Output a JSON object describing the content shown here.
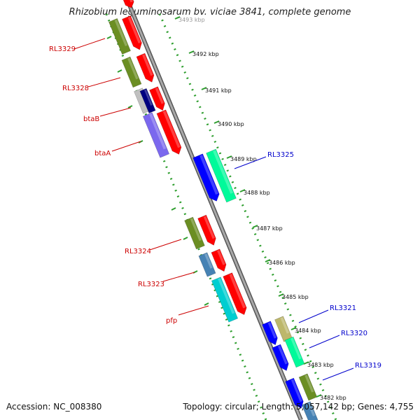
{
  "title": "Rhizobium leguminosarum bv. viciae 3841, complete genome",
  "footer": {
    "accession": "Accession: NC_008380",
    "summary": "Topology: circular; Length: 5,057,142 bp; Genes: 4,755"
  },
  "colors": {
    "backbone": "#8c8c8c",
    "tick_dots": "#2e9e2e",
    "left_label": "#cc0000",
    "right_label": "#0000cc",
    "red_strand": "#ff0000",
    "olive_strand": "#6b8e23"
  },
  "ticks": [
    "3493 kbp",
    "3492 kbp",
    "3491 kbp",
    "3490 kbp",
    "3489 kbp",
    "3488 kbp",
    "3487 kbp",
    "3486 kbp",
    "3485 kbp",
    "3484 kbp",
    "3483 kbp",
    "3482 kbp"
  ],
  "left_genes": [
    "RL3329",
    "RL3328",
    "btaB",
    "btaA",
    "RL3324",
    "RL3323",
    "pfp"
  ],
  "right_genes": [
    "RL3325",
    "RL3321",
    "RL3320",
    "RL3319"
  ]
}
